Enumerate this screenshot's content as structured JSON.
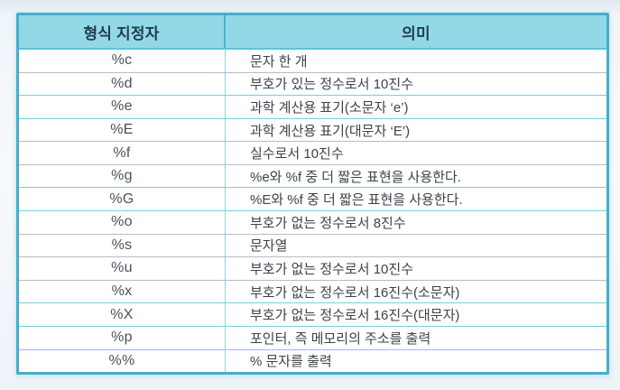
{
  "table": {
    "columns": [
      {
        "label": "형식 지정자"
      },
      {
        "label": "의미"
      }
    ],
    "rows": [
      {
        "spec": "%c",
        "meaning": "문자 한 개",
        "divider": "gray"
      },
      {
        "spec": "%d",
        "meaning": "부호가 있는 정수로서 10진수",
        "divider": "cyan"
      },
      {
        "spec": "%e",
        "meaning": "과학 계산용 표기(소문자 ‘e’)",
        "divider": "cyan"
      },
      {
        "spec": "%E",
        "meaning": "과학 계산용 표기(대문자 ‘E’)",
        "divider": "gray"
      },
      {
        "spec": "%f",
        "meaning": "실수로서 10진수",
        "divider": "gray"
      },
      {
        "spec": "%g",
        "meaning": "%e와 %f 중 더 짧은 표현을 사용한다.",
        "divider": "cyan"
      },
      {
        "spec": "%G",
        "meaning": "%E와 %f 중 더 짧은 표현을 사용한다.",
        "divider": "cyan"
      },
      {
        "spec": "%o",
        "meaning": "부호가 없는 정수로서 8진수",
        "divider": "gray"
      },
      {
        "spec": "%s",
        "meaning": "문자열",
        "divider": "gray"
      },
      {
        "spec": "%u",
        "meaning": "부호가 없는 정수로서 10진수",
        "divider": "gray"
      },
      {
        "spec": "%x",
        "meaning": "부호가 없는 정수로서 16진수(소문자)",
        "divider": "cyan"
      },
      {
        "spec": "%X",
        "meaning": "부호가 없는 정수로서 16진수(대문자)",
        "divider": "cyan"
      },
      {
        "spec": "%p",
        "meaning": "포인터, 즉 메모리의 주소를 출력",
        "divider": "cyan"
      },
      {
        "spec": "%%",
        "meaning": "% 문자를 출력",
        "divider": "none"
      }
    ]
  },
  "colors": {
    "table_border": "#46aec9",
    "header_fill": "#93d8e7",
    "header_underline": "#5fc2d8",
    "header_text": "#1e3d4b",
    "column_divider_header": "#4db2cc",
    "column_divider": "#89d3e3",
    "divider_cyan": "#79cde0",
    "divider_gray": "#b7bcc0",
    "body_text": "#3d4348"
  }
}
